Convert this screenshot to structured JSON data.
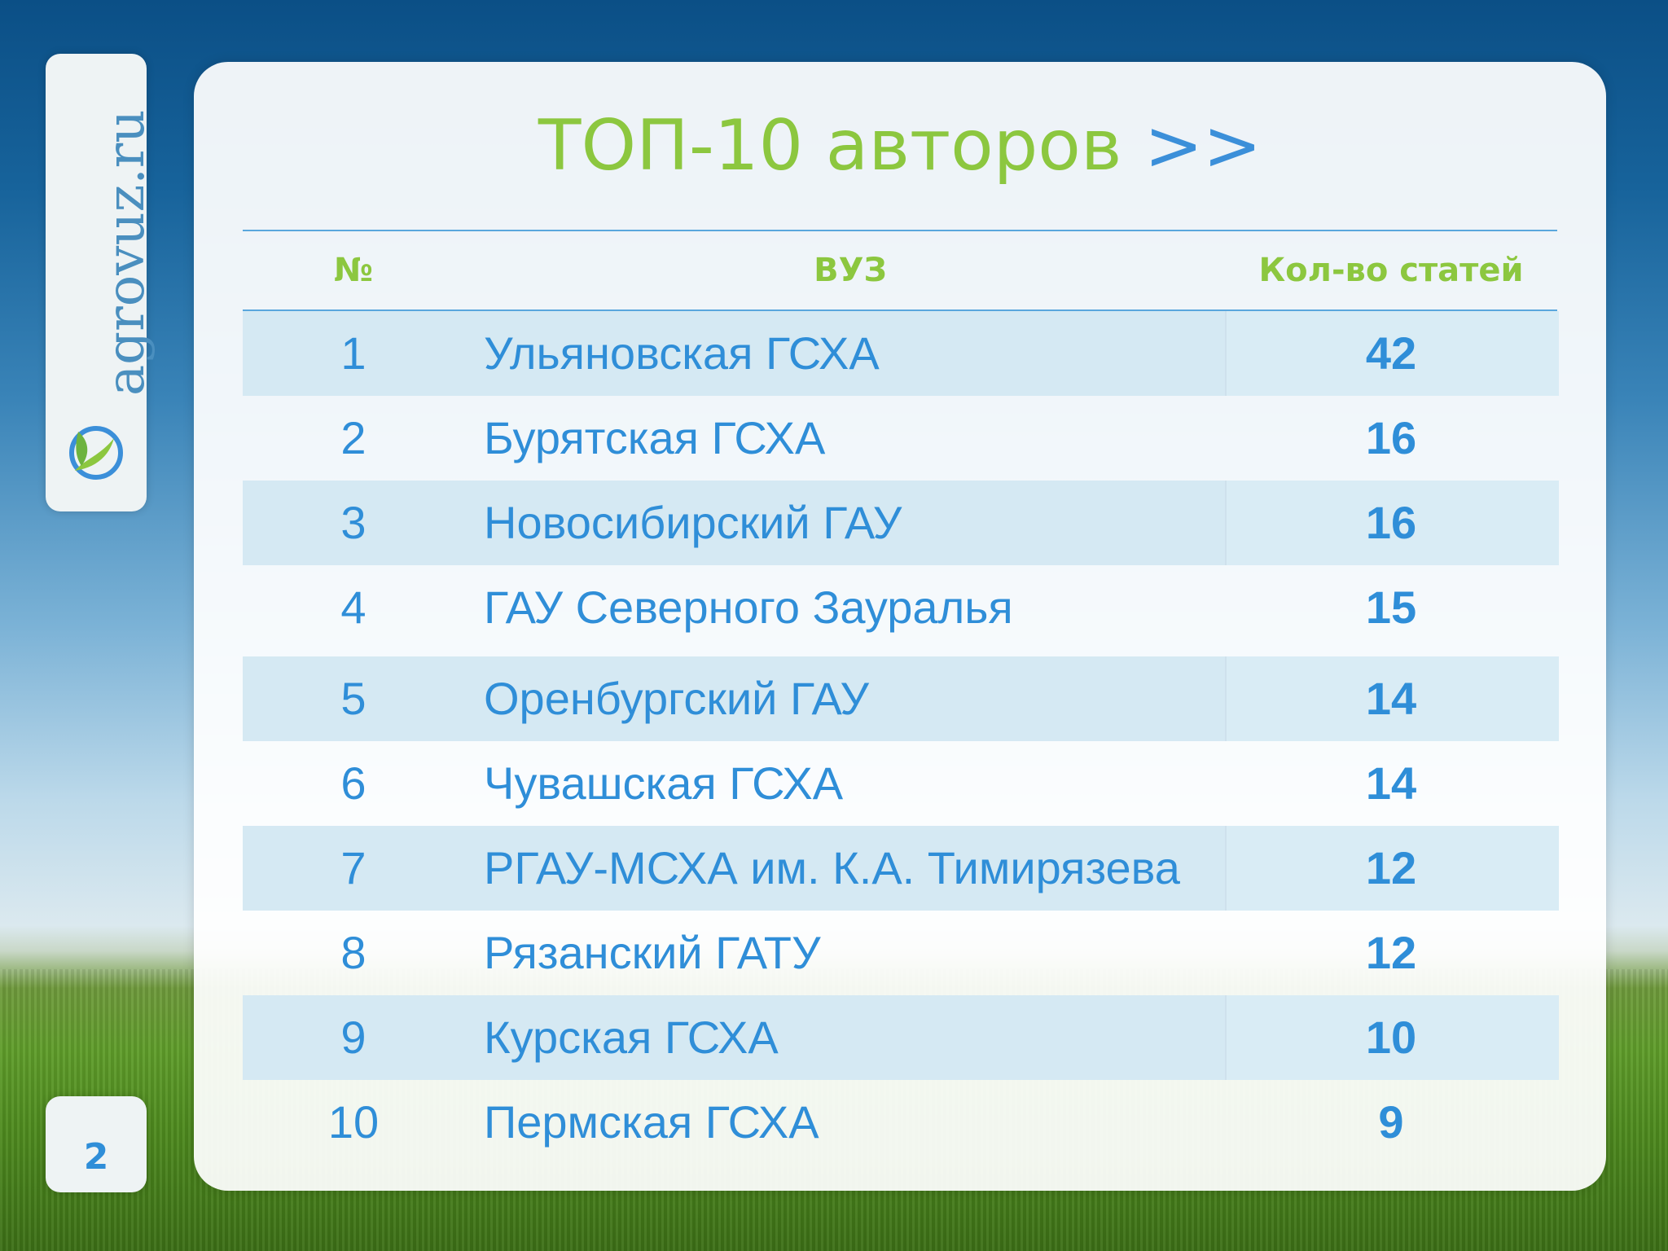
{
  "logo": {
    "text": "agrovuz.ru"
  },
  "slide": {
    "page_number": "2"
  },
  "title": {
    "main": "ТОП-10 авторов",
    "arrows": ">>"
  },
  "table": {
    "headers": {
      "num": "№",
      "name": "ВУЗ",
      "count": "Кол-во статей"
    },
    "rows": [
      {
        "num": "1",
        "name": "Ульяновская ГСХА",
        "count": "42"
      },
      {
        "num": "2",
        "name": "Бурятская ГСХА",
        "count": "16"
      },
      {
        "num": "3",
        "name": "Новосибирский ГАУ",
        "count": "16"
      },
      {
        "num": "4",
        "name": "ГАУ Северного Зауралья",
        "count": "15"
      },
      {
        "num": "5",
        "name": "Оренбургский ГАУ",
        "count": "14"
      },
      {
        "num": "6",
        "name": "Чувашская ГСХА",
        "count": "14"
      },
      {
        "num": "7",
        "name": "РГАУ-МСХА им. К.А. Тимирязева",
        "count": "12"
      },
      {
        "num": "8",
        "name": "Рязанский ГАТУ",
        "count": "12"
      },
      {
        "num": "9",
        "name": "Курская ГСХА",
        "count": "10"
      },
      {
        "num": "10",
        "name": "Пермская ГСХА",
        "count": "9"
      }
    ]
  },
  "colors": {
    "title_green": "#8cc73f",
    "accent_blue": "#2f8ed8",
    "row_shade": "#d5e9f3"
  }
}
